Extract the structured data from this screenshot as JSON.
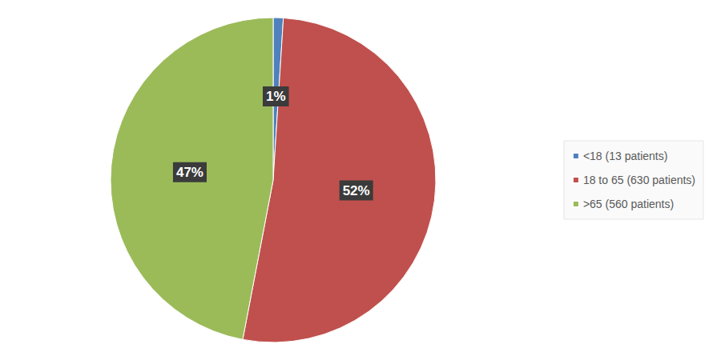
{
  "chart_data": {
    "type": "pie",
    "categories": [
      "<18 (13 patients)",
      "18 to 65 (630 patients)",
      ">65 (560 patients)"
    ],
    "values": [
      1,
      52,
      47
    ],
    "value_labels": [
      "1%",
      "52%",
      "47%"
    ],
    "colors": [
      "#4f81bd",
      "#c0504d",
      "#9bbb59"
    ],
    "data_labels": true,
    "legend": "right"
  }
}
